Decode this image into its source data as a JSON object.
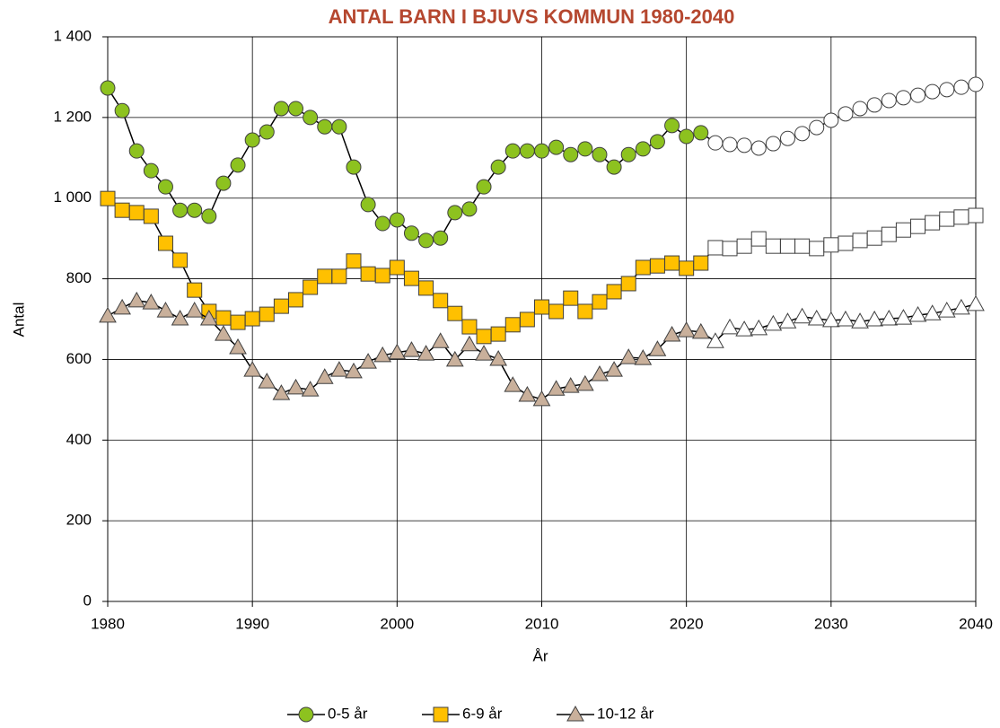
{
  "chart_data": {
    "type": "line",
    "title": "ANTAL BARN I BJUVS KOMMUN 1980-2040",
    "title_color": "#b5472f",
    "x_label": "År",
    "y_label": "Antal",
    "x": [
      1980,
      1981,
      1982,
      1983,
      1984,
      1985,
      1986,
      1987,
      1988,
      1989,
      1990,
      1991,
      1992,
      1993,
      1994,
      1995,
      1996,
      1997,
      1998,
      1999,
      2000,
      2001,
      2002,
      2003,
      2004,
      2005,
      2006,
      2007,
      2008,
      2009,
      2010,
      2011,
      2012,
      2013,
      2014,
      2015,
      2016,
      2017,
      2018,
      2019,
      2020,
      2021,
      2022,
      2023,
      2024,
      2025,
      2026,
      2027,
      2028,
      2029,
      2030,
      2031,
      2032,
      2033,
      2034,
      2035,
      2036,
      2037,
      2038,
      2039,
      2040
    ],
    "forecast_from": 2022,
    "forecast_marker_fill": "#ffffff",
    "series": [
      {
        "name": "0-5 år",
        "color": "#8dc21f",
        "marker": "circle",
        "values": [
          1273,
          1217,
          1117,
          1068,
          1028,
          970,
          970,
          955,
          1037,
          1082,
          1144,
          1164,
          1222,
          1222,
          1200,
          1177,
          1177,
          1077,
          984,
          937,
          946,
          913,
          895,
          901,
          964,
          973,
          1028,
          1077,
          1117,
          1117,
          1117,
          1126,
          1108,
          1122,
          1108,
          1077,
          1108,
          1122,
          1140,
          1180,
          1153,
          1162,
          1137,
          1133,
          1131,
          1124,
          1135,
          1148,
          1160,
          1175,
          1193,
          1209,
          1222,
          1231,
          1242,
          1249,
          1255,
          1264,
          1269,
          1275,
          1282
        ]
      },
      {
        "name": "6-9 år",
        "color": "#ffc000",
        "marker": "square",
        "values": [
          999,
          970,
          964,
          955,
          888,
          846,
          772,
          719,
          703,
          692,
          701,
          712,
          732,
          748,
          779,
          806,
          806,
          844,
          812,
          808,
          828,
          801,
          777,
          746,
          714,
          681,
          657,
          663,
          686,
          699,
          730,
          719,
          752,
          719,
          743,
          768,
          788,
          828,
          832,
          839,
          826,
          839,
          877,
          875,
          881,
          899,
          881,
          881,
          881,
          875,
          884,
          888,
          895,
          901,
          910,
          921,
          930,
          939,
          948,
          953,
          957
        ]
      },
      {
        "name": "10-12 år",
        "color": "#c9b09b",
        "marker": "triangle",
        "values": [
          708,
          728,
          746,
          741,
          721,
          701,
          721,
          701,
          663,
          630,
          574,
          545,
          516,
          530,
          525,
          556,
          574,
          570,
          594,
          610,
          617,
          623,
          614,
          645,
          599,
          637,
          614,
          601,
          536,
          512,
          501,
          527,
          534,
          539,
          563,
          574,
          605,
          603,
          625,
          661,
          672,
          668,
          645,
          679,
          674,
          677,
          688,
          694,
          706,
          701,
          697,
          699,
          694,
          699,
          701,
          703,
          710,
          714,
          721,
          728,
          737
        ]
      }
    ],
    "xlim": [
      1980,
      2040
    ],
    "xticks": [
      1980,
      1990,
      2000,
      2010,
      2020,
      2030,
      2040
    ],
    "ylim": [
      0,
      1400
    ],
    "yticks": [
      0,
      200,
      400,
      600,
      800,
      {
        "value": 1000,
        "label": "1 000"
      },
      {
        "value": 1200,
        "label": "1 200"
      },
      {
        "value": 1400,
        "label": "1 400"
      }
    ],
    "grid": true,
    "legend": "bottom"
  }
}
